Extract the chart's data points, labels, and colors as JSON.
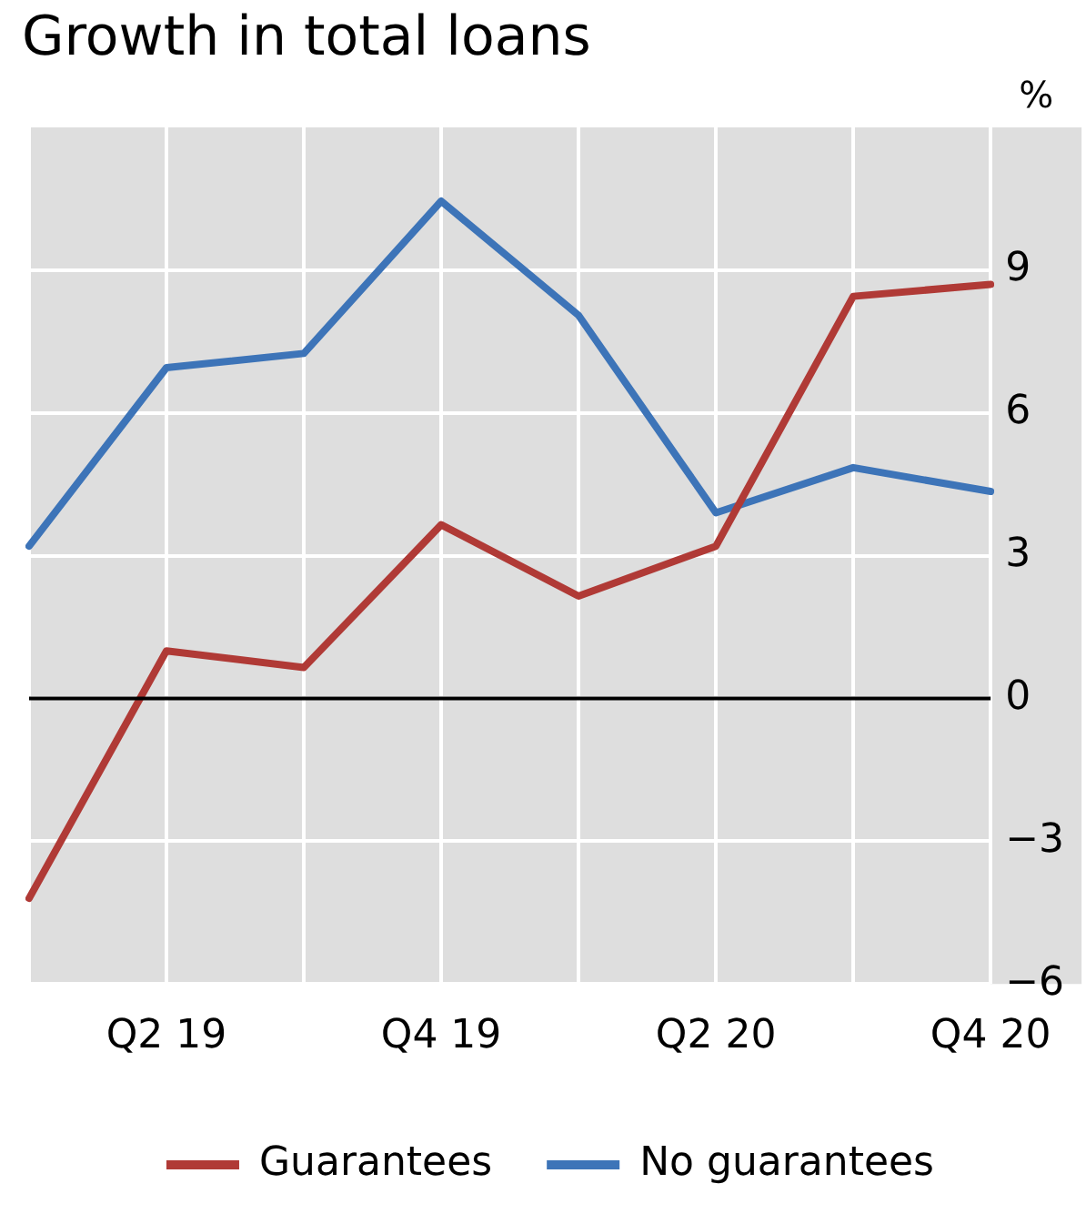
{
  "chart_data": {
    "type": "line",
    "title": "Growth in total loans",
    "ylabel": "%",
    "categories": [
      null,
      "Q2 19",
      null,
      "Q4 19",
      null,
      "Q2 20",
      null,
      "Q4 20"
    ],
    "series": [
      {
        "name": "Guarantees",
        "color": "#b03a36",
        "values": [
          -4.2,
          1.0,
          0.65,
          3.65,
          2.15,
          3.2,
          8.45,
          8.7
        ]
      },
      {
        "name": "No guarantees",
        "color": "#3d74b8",
        "values": [
          3.2,
          6.95,
          7.25,
          10.45,
          8.05,
          3.9,
          4.85,
          4.35
        ]
      }
    ],
    "ylim": [
      -6,
      12
    ],
    "yticks": [
      -6,
      -3,
      0,
      3,
      6,
      9
    ],
    "ref_lines": [
      {
        "axis": "y",
        "value": 0,
        "color": "#000000"
      }
    ],
    "grid": true,
    "legend": "bottom",
    "marker": "none",
    "line_style": "solid"
  }
}
